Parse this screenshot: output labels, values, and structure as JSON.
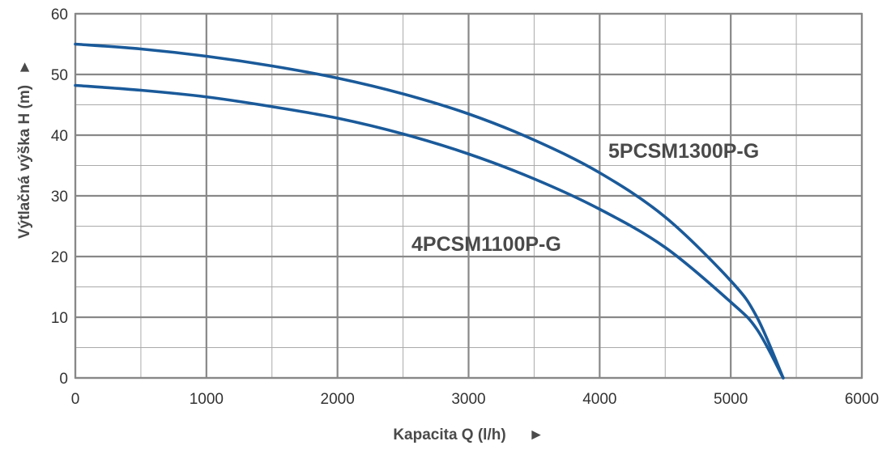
{
  "chart_data": {
    "type": "line",
    "xlabel": "Kapacita Q (l/h)",
    "ylabel": "Výtlačná výška H (m)",
    "xlim": [
      0,
      6000
    ],
    "ylim": [
      0,
      60
    ],
    "x_ticks": [
      0,
      1000,
      2000,
      3000,
      4000,
      5000,
      6000
    ],
    "y_ticks": [
      0,
      10,
      20,
      30,
      40,
      50,
      60
    ],
    "x_minor_step": 500,
    "y_minor_step": 5,
    "grid": true,
    "arrow_glyph": "►",
    "line_color": "#1a5a9a",
    "grid_color": "#888888",
    "series": [
      {
        "name": "5PCSM1300P-G",
        "x": [
          0,
          500,
          1000,
          1500,
          2000,
          2500,
          3000,
          3500,
          4000,
          4500,
          5000,
          5200,
          5400
        ],
        "y": [
          55.0,
          54.2,
          53.0,
          51.4,
          49.4,
          46.8,
          43.5,
          39.2,
          33.8,
          26.5,
          16.0,
          10.0,
          0.0
        ]
      },
      {
        "name": "4PCSM1100P-G",
        "x": [
          0,
          500,
          1000,
          1500,
          2000,
          2500,
          3000,
          3500,
          4000,
          4500,
          5000,
          5200,
          5400
        ],
        "y": [
          48.2,
          47.4,
          46.3,
          44.7,
          42.8,
          40.2,
          36.9,
          32.8,
          27.8,
          21.5,
          12.5,
          8.0,
          0.0
        ]
      }
    ]
  }
}
